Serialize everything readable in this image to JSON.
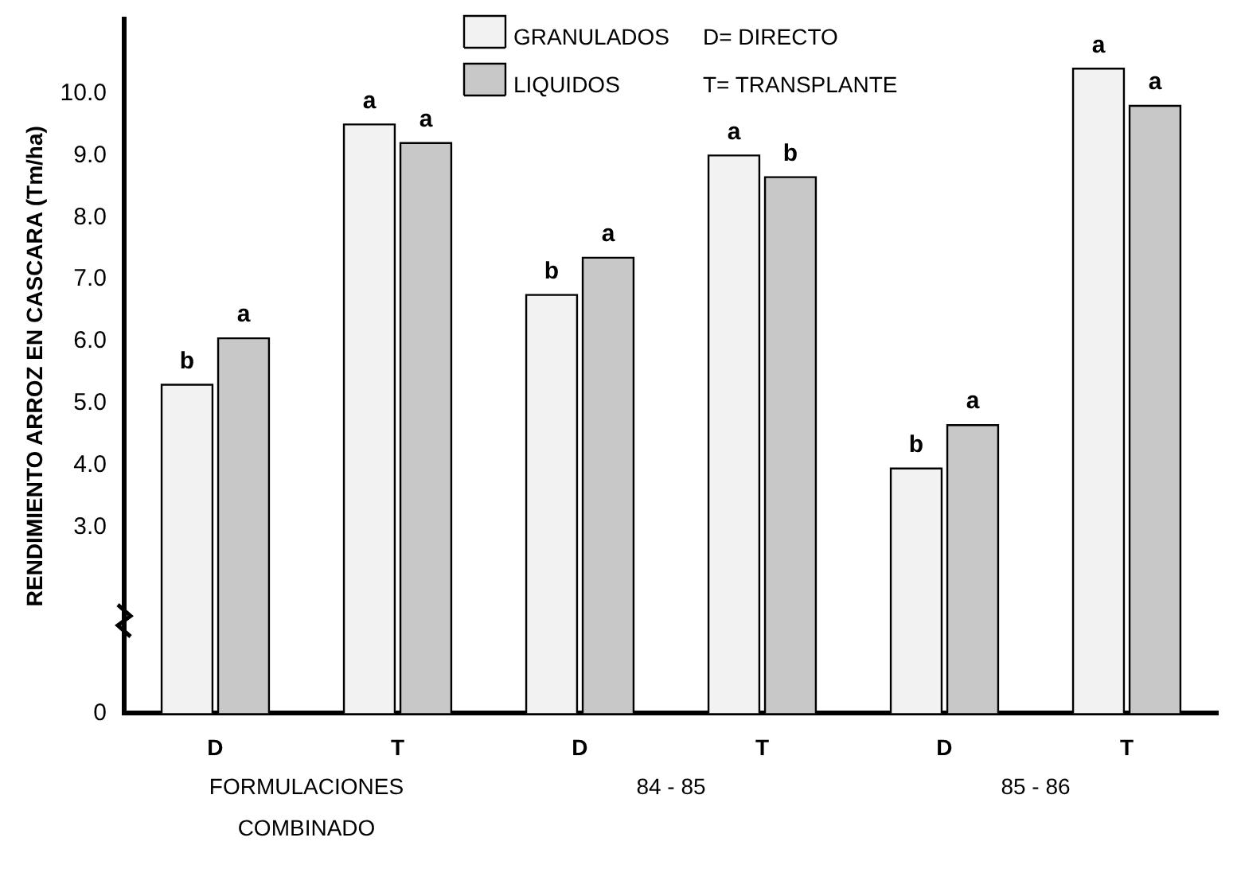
{
  "chart_data": {
    "type": "bar",
    "ylabel": "RENDIMIENTO ARROZ EN CASCARA (Tm/ha)",
    "categories": [
      "D",
      "T",
      "D",
      "T",
      "D",
      "T"
    ],
    "series": [
      {
        "name": "GRANULADOS",
        "color": "#f2f2f2",
        "values": [
          5.3,
          9.5,
          6.75,
          9.0,
          3.95,
          10.4
        ],
        "value_labels": [
          "b",
          "a",
          "b",
          "a",
          "b",
          "a"
        ]
      },
      {
        "name": "LIQUIDOS",
        "color": "#c8c8c8",
        "values": [
          6.05,
          9.2,
          7.35,
          8.65,
          4.65,
          9.8
        ],
        "value_labels": [
          "a",
          "a",
          "a",
          "b",
          "a",
          "a"
        ]
      }
    ],
    "ylim": [
      0,
      11.2
    ],
    "yticks": [
      0,
      {
        "value": 3,
        "label": "3.0"
      },
      {
        "value": 4,
        "label": "4.0"
      },
      {
        "value": 5,
        "label": "5.0"
      },
      {
        "value": 6,
        "label": "6.0"
      },
      {
        "value": 7,
        "label": "7.0"
      },
      {
        "value": 8,
        "label": "8.0"
      },
      {
        "value": 9,
        "label": "9.0"
      },
      {
        "value": 10,
        "label": "10.0"
      }
    ],
    "annotations": [
      "D= DIRECTO",
      "T= TRANSPLANTE",
      "FORMULACIONES\nCOMBINADO",
      "84 - 85",
      "85 - 86"
    ],
    "legend": "top",
    "grid": false
  }
}
